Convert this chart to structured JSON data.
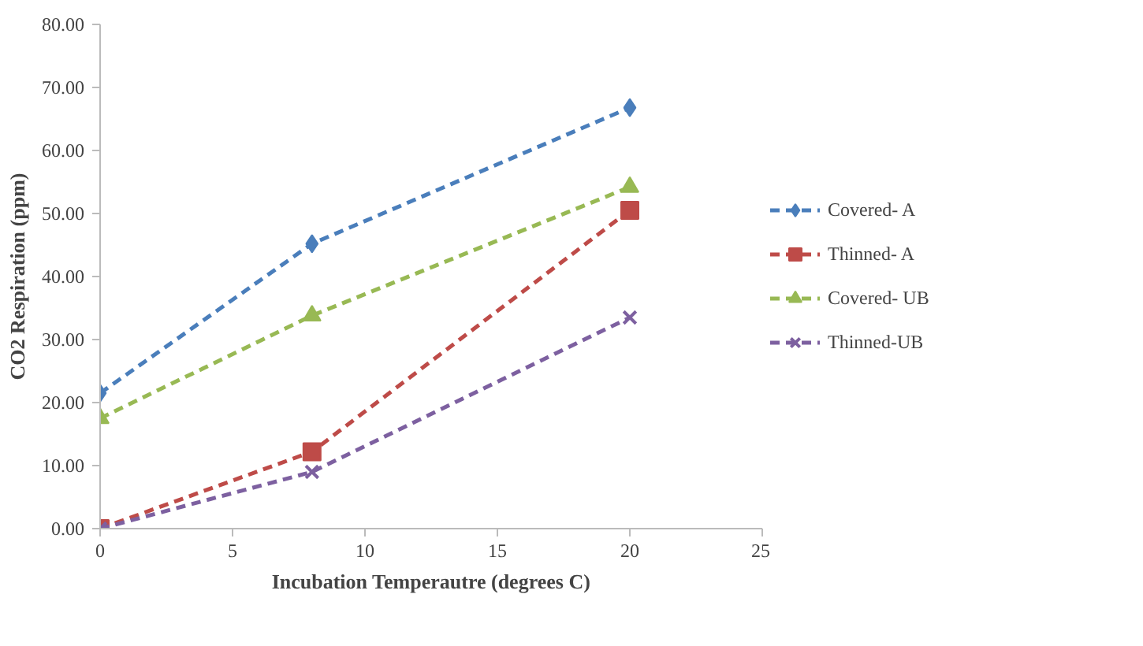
{
  "chart_data": {
    "type": "line",
    "xlabel": "Incubation Temperautre (degrees C)",
    "ylabel": "CO2 Respiration (ppm)",
    "x": [
      0,
      8,
      20
    ],
    "series": [
      {
        "name": "Covered- A",
        "color": "#4a7ebb",
        "marker": "diamond",
        "values": [
          21.5,
          45.2,
          66.8
        ]
      },
      {
        "name": "Thinned- A",
        "color": "#be4b48",
        "marker": "square",
        "values": [
          0,
          12.2,
          50.5
        ]
      },
      {
        "name": "Covered- UB",
        "color": "#98b954",
        "marker": "triangle",
        "values": [
          17.5,
          33.8,
          54.2
        ]
      },
      {
        "name": "Thinned-UB",
        "color": "#7d60a0",
        "marker": "cross",
        "values": [
          0,
          9,
          33.5
        ]
      }
    ],
    "xlim": [
      0,
      25
    ],
    "xticks": [
      0,
      5,
      10,
      15,
      20,
      25
    ],
    "ylim": [
      0,
      80
    ],
    "yticks": [
      {
        "value": 0,
        "label": "0.00"
      },
      {
        "value": 10,
        "label": "10.00"
      },
      {
        "value": 20,
        "label": "20.00"
      },
      {
        "value": 30,
        "label": "30.00"
      },
      {
        "value": 40,
        "label": "40.00"
      },
      {
        "value": 50,
        "label": "50.00"
      },
      {
        "value": 60,
        "label": "60.00"
      },
      {
        "value": 70,
        "label": "70.00"
      },
      {
        "value": 80,
        "label": "80.00"
      }
    ],
    "grid": false,
    "legend": "right",
    "line_style": "dashed"
  }
}
